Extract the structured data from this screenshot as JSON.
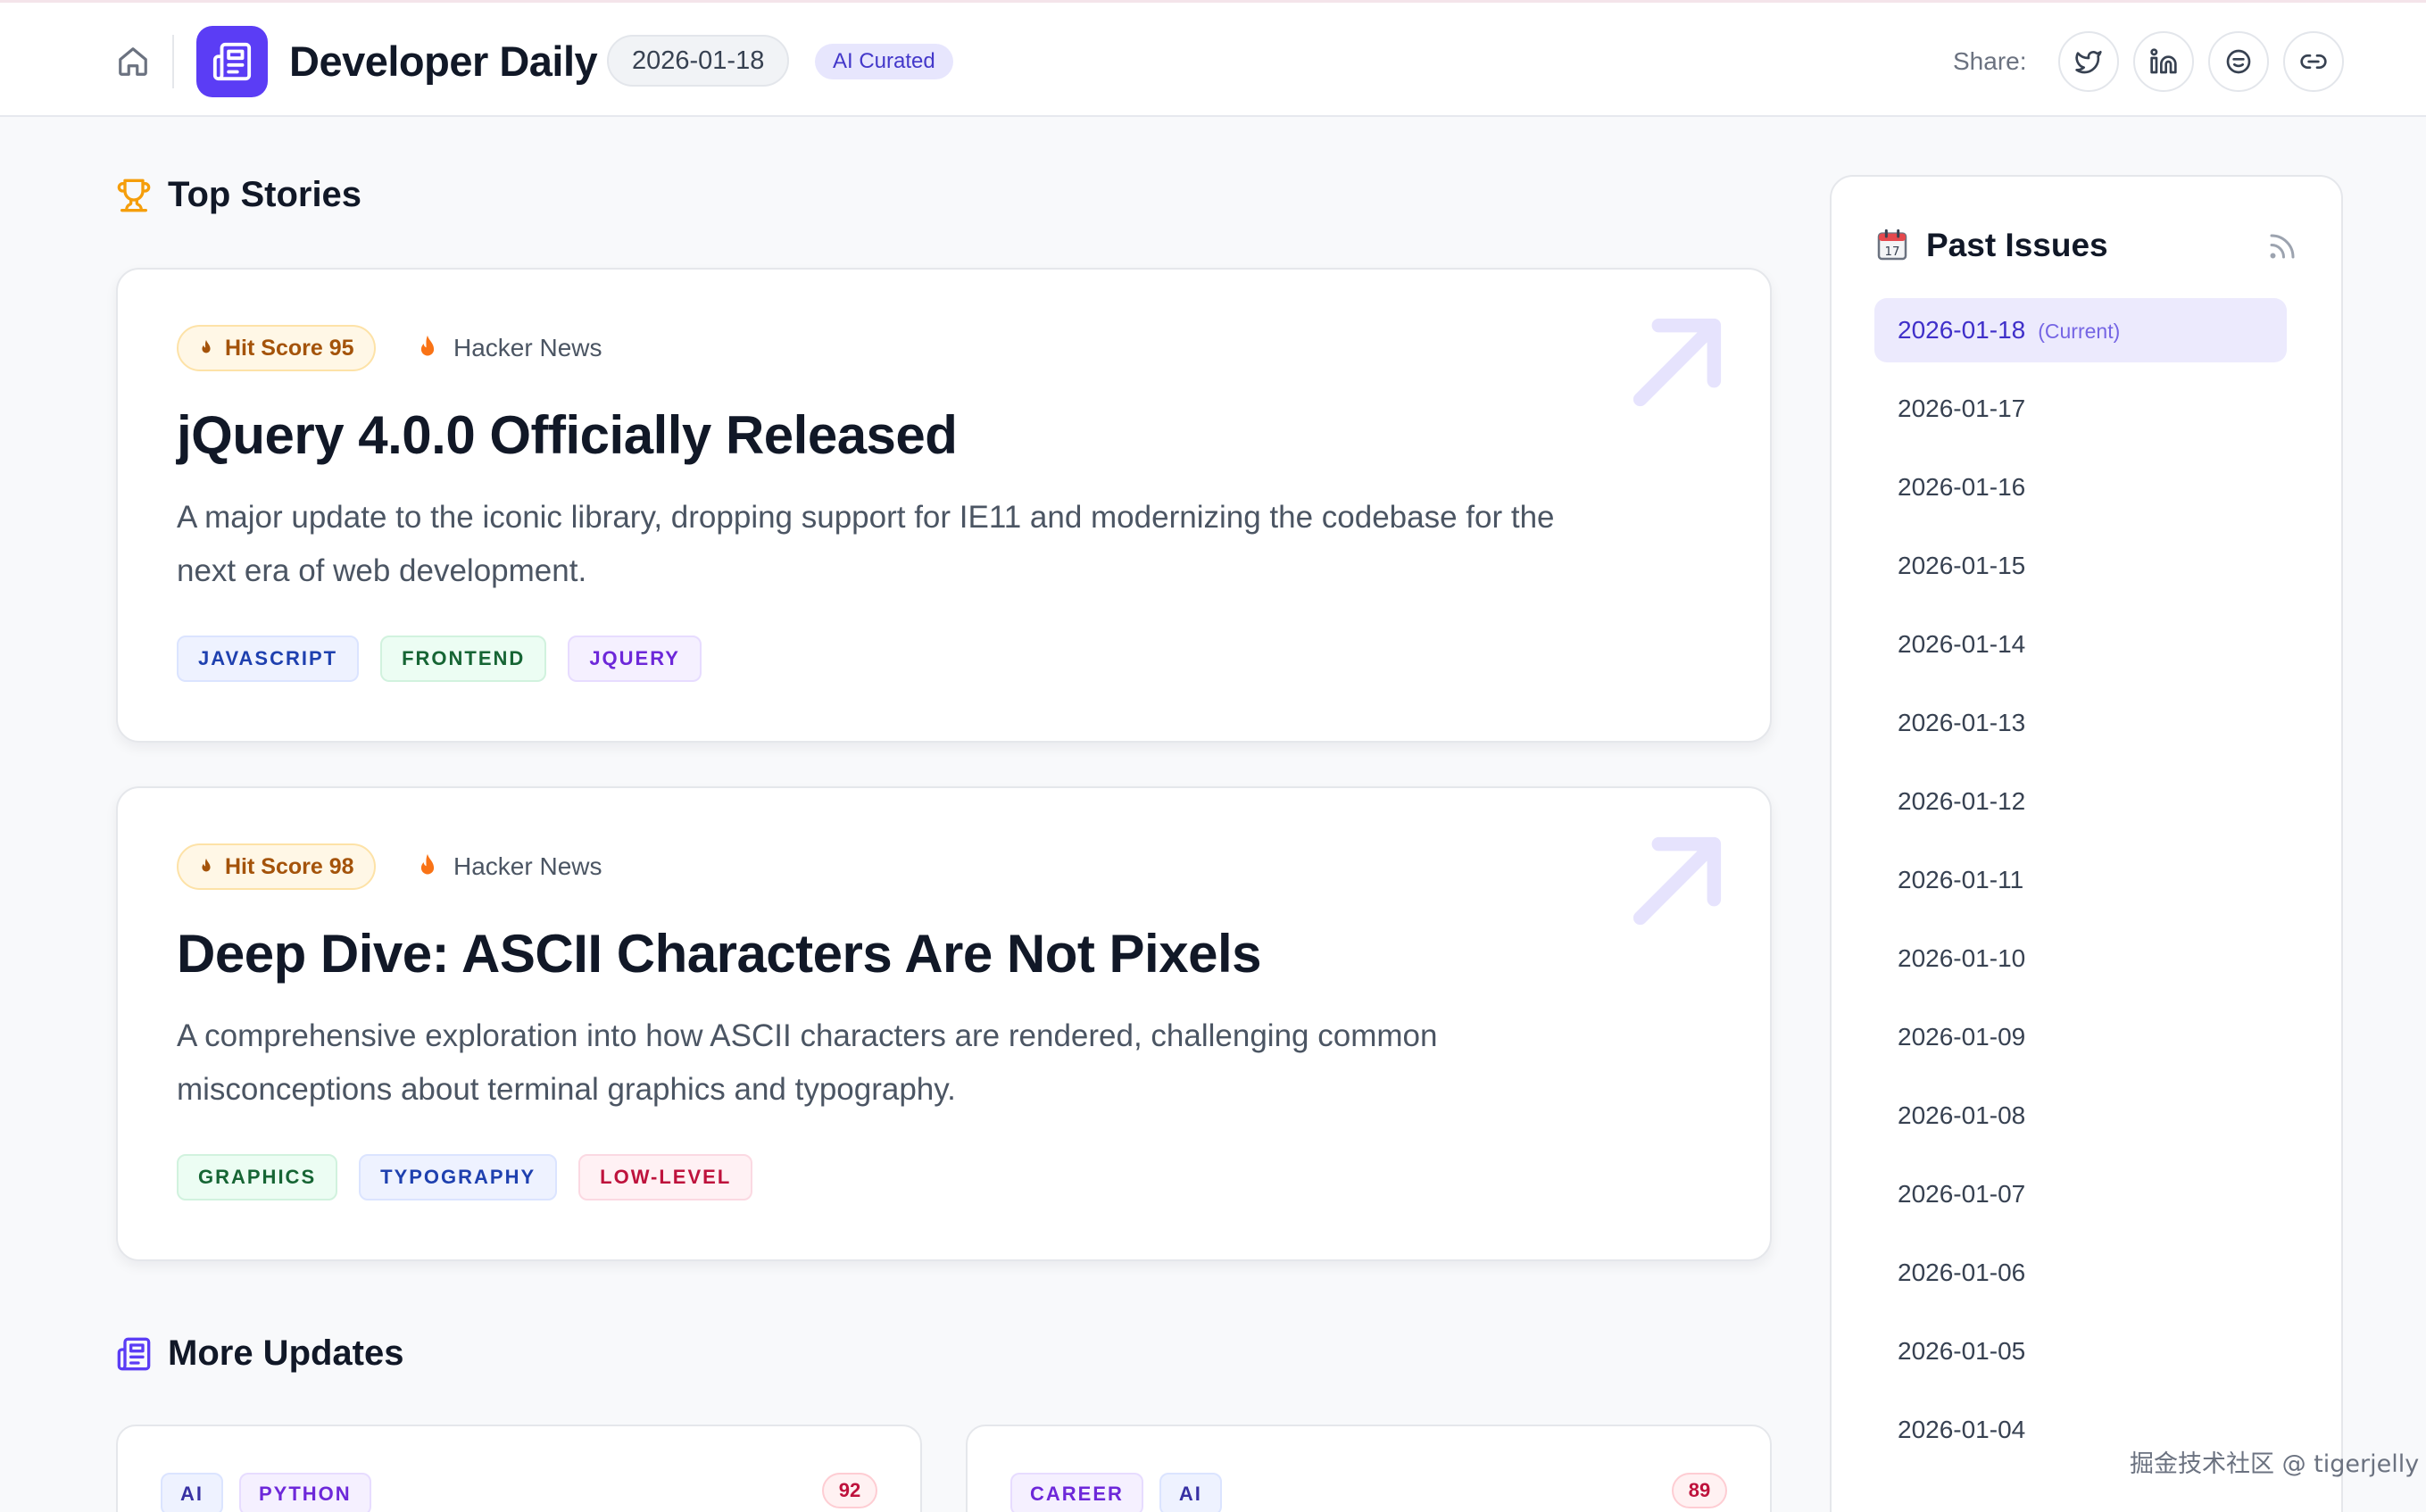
{
  "header": {
    "app_title": "Developer Daily",
    "date": "2026-01-18",
    "badge": "AI Curated",
    "share_label": "Share:",
    "share_buttons": [
      "twitter-icon",
      "linkedin-icon",
      "reddit-icon",
      "link-icon"
    ]
  },
  "top_stories": {
    "heading": "Top Stories",
    "items": [
      {
        "hit_score": "Hit Score 95",
        "source": "Hacker News",
        "title": "jQuery 4.0.0 Officially Released",
        "description": "A major update to the iconic library, dropping support for IE11 and modernizing the codebase for the next era of web development.",
        "tags": [
          "JAVASCRIPT",
          "FRONTEND",
          "JQUERY"
        ]
      },
      {
        "hit_score": "Hit Score 98",
        "source": "Hacker News",
        "title": "Deep Dive: ASCII Characters Are Not Pixels",
        "description": "A comprehensive exploration into how ASCII characters are rendered, challenging common misconceptions about terminal graphics and typography.",
        "tags": [
          "GRAPHICS",
          "TYPOGRAPHY",
          "LOW-LEVEL"
        ]
      }
    ]
  },
  "more_updates": {
    "heading": "More Updates",
    "items": [
      {
        "tags": [
          "AI",
          "PYTHON"
        ],
        "score": "92"
      },
      {
        "tags": [
          "CAREER",
          "AI"
        ],
        "score": "89"
      }
    ]
  },
  "sidebar": {
    "heading": "Past Issues",
    "current_note": "(Current)",
    "issues": [
      "2026-01-18",
      "2026-01-17",
      "2026-01-16",
      "2026-01-15",
      "2026-01-14",
      "2026-01-13",
      "2026-01-12",
      "2026-01-11",
      "2026-01-10",
      "2026-01-09",
      "2026-01-08",
      "2026-01-07",
      "2026-01-06",
      "2026-01-05",
      "2026-01-04"
    ]
  },
  "watermark": "掘金技术社区 @ tigerjelly",
  "colors": {
    "accent": "#5b3df5",
    "hit_score_text": "#a4530a",
    "flame": "#f97316",
    "trophy": "#f59e0b"
  }
}
